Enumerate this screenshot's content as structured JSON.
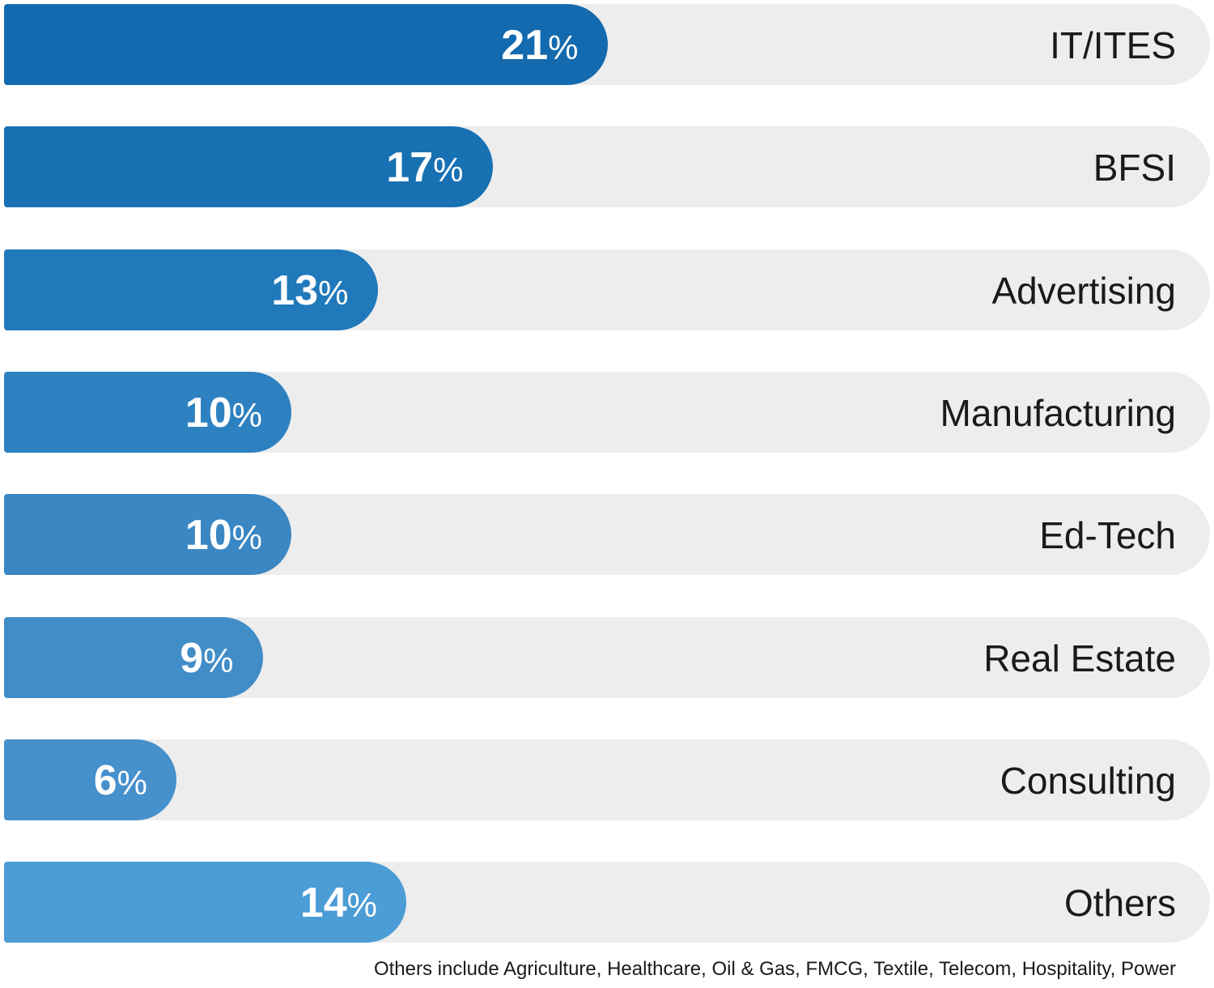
{
  "chart_data": {
    "type": "bar",
    "orientation": "horizontal",
    "categories": [
      "IT/ITES",
      "BFSI",
      "Advertising",
      "Manufacturing",
      "Ed-Tech",
      "Real Estate",
      "Consulting",
      "Others"
    ],
    "values": [
      21,
      17,
      13,
      10,
      10,
      9,
      6,
      14
    ],
    "value_suffix": "%",
    "bar_colors": [
      "#146aae",
      "#1871b3",
      "#2079ba",
      "#2e81c1",
      "#3a87c4",
      "#418dc8",
      "#4690cc",
      "#4c9cd6"
    ],
    "track_color": "#ededed",
    "title": "",
    "xlabel": "",
    "ylabel": "",
    "footnote": "Others include Agriculture, Healthcare, Oil & Gas, FMCG, Textile, Telecom, Hospitality, Power"
  }
}
